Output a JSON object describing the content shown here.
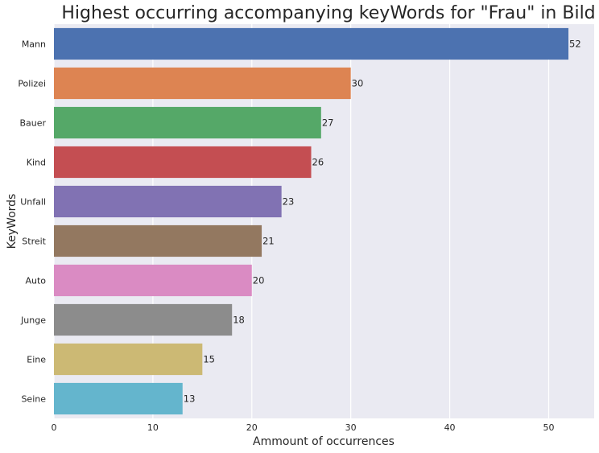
{
  "chart_data": {
    "type": "bar",
    "orientation": "horizontal",
    "title": "Highest occurring accompanying keyWords for \"Frau\" in Bild",
    "xlabel": "Ammount of occurrences",
    "ylabel": "KeyWords",
    "categories": [
      "Mann",
      "Polizei",
      "Bauer",
      "Kind",
      "Unfall",
      "Streit",
      "Auto",
      "Junge",
      "Eine",
      "Seine"
    ],
    "values": [
      52,
      30,
      27,
      26,
      23,
      21,
      20,
      18,
      15,
      13
    ],
    "data_labels": [
      "52",
      "30",
      "27",
      "26",
      "23",
      "21",
      "20",
      "18",
      "15",
      "13"
    ],
    "xlim": [
      0,
      54.6
    ],
    "xticks": [
      0,
      10,
      20,
      30,
      40,
      50
    ],
    "grid": true,
    "background": "#EAEAF2",
    "grid_color": "#FFFFFF",
    "colors": [
      "#4C72B0",
      "#DD8452",
      "#55A868",
      "#C44E52",
      "#8172B3",
      "#937860",
      "#DA8BC3",
      "#8C8C8C",
      "#CCB974",
      "#64B5CD"
    ]
  }
}
